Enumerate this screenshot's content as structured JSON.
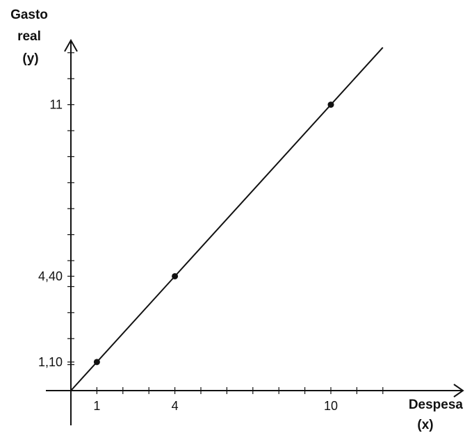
{
  "chart_data": {
    "type": "line",
    "title": "",
    "xlabel": [
      "Despesa",
      "(x)"
    ],
    "ylabel": [
      "Gasto",
      "real",
      "(y)"
    ],
    "xlim": [
      0,
      12
    ],
    "ylim": [
      0,
      13.1
    ],
    "x_tick_labels": [
      "1",
      "4",
      "10"
    ],
    "x_tick_values": [
      1,
      4,
      10
    ],
    "y_tick_labels": [
      "1,10",
      "4,40",
      "11"
    ],
    "y_tick_values": [
      1.1,
      4.4,
      11
    ],
    "grid": false,
    "legend": "none",
    "series": [
      {
        "line": {
          "x": [
            0,
            12
          ],
          "y": [
            0,
            13.2
          ]
        },
        "points": [
          {
            "x": 1,
            "y": 1.1
          },
          {
            "x": 4,
            "y": 4.4
          },
          {
            "x": 10,
            "y": 11
          }
        ]
      }
    ],
    "colors": {
      "ink": "#111111",
      "background": "#ffffff"
    }
  }
}
